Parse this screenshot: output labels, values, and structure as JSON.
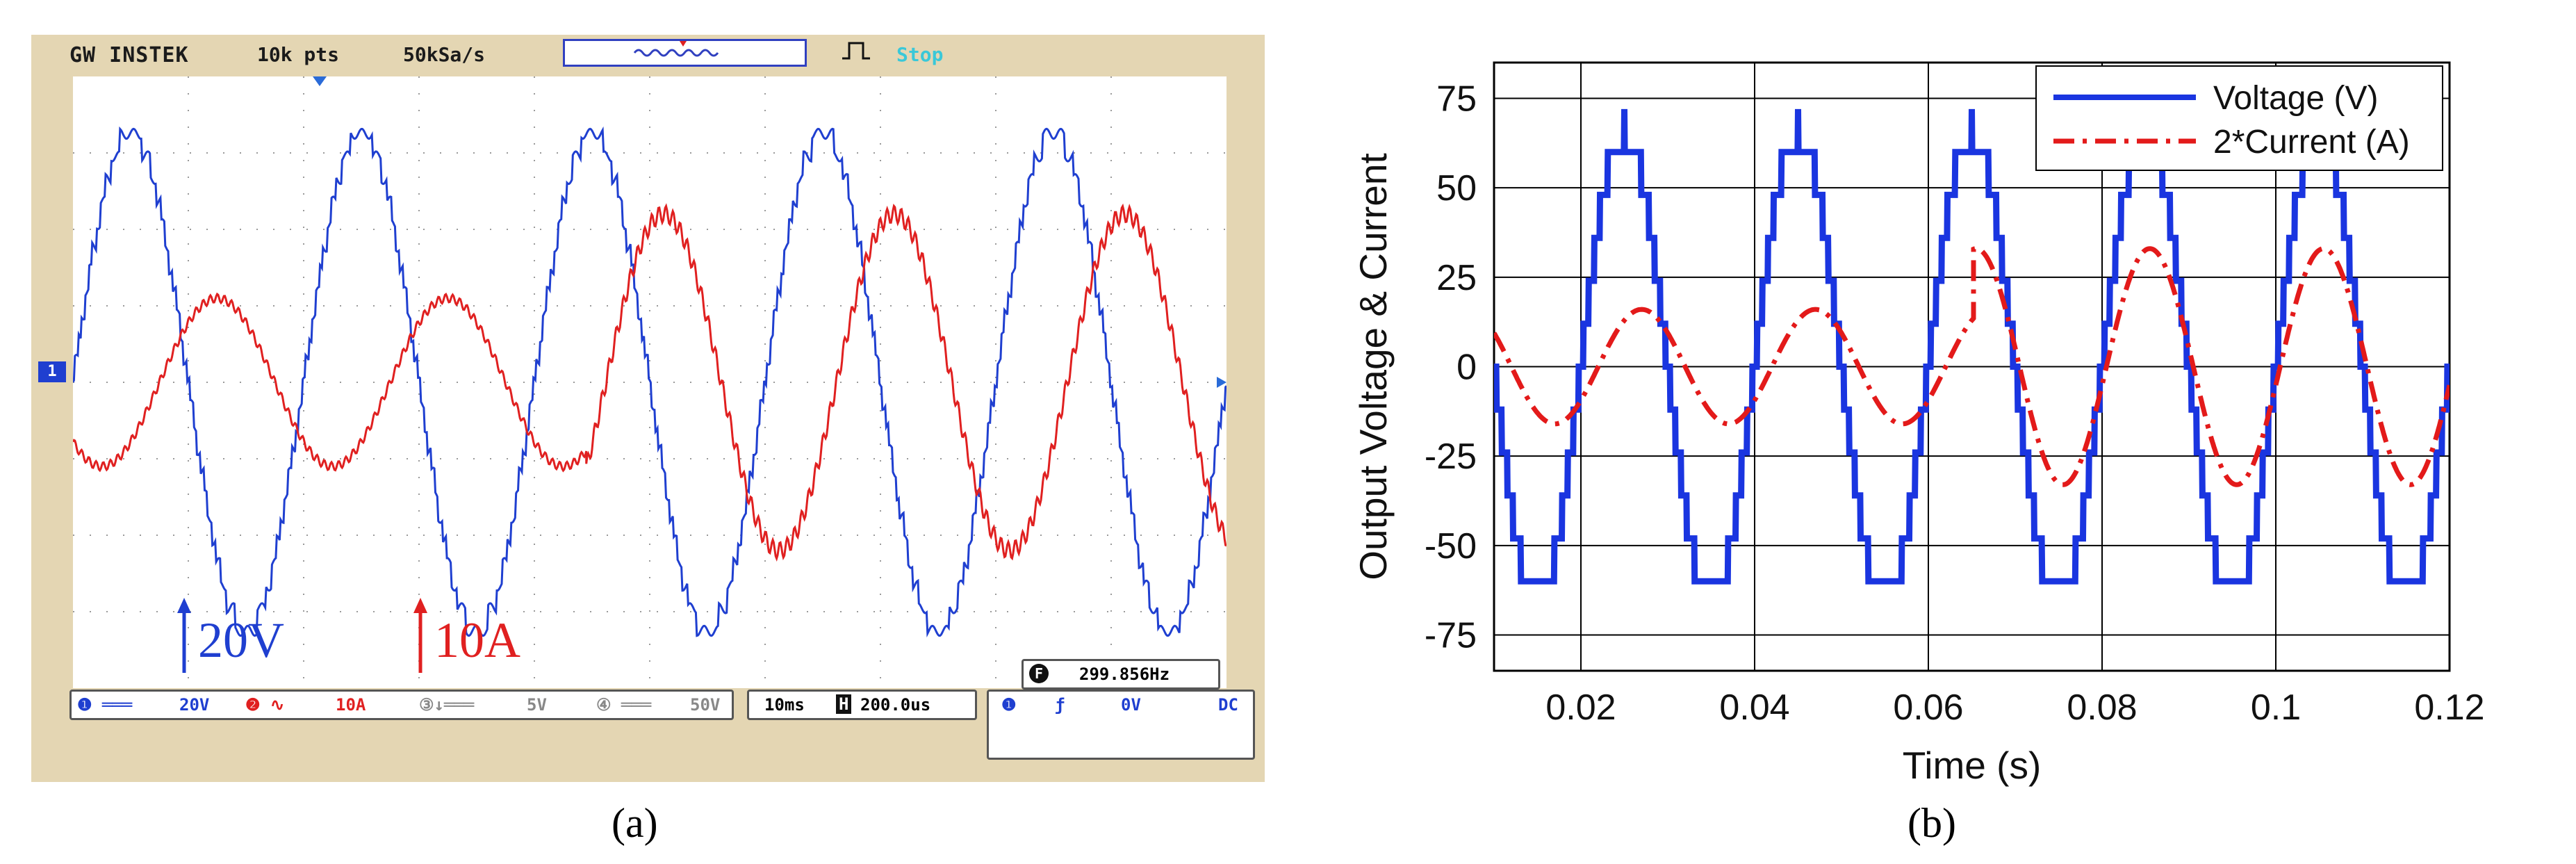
{
  "scope": {
    "brand": "GW INSTEK",
    "record_length": "10k pts",
    "sample_rate": "50kSa/s",
    "run_state": "Stop",
    "channel1_marker": "1",
    "v_scale_label": "20V",
    "i_scale_label": "10A",
    "frequency": "299.856Hz",
    "ch1_scale": "20V",
    "ch2_scale": "10A",
    "ch3_scale": "5V",
    "ch4_scale": "50V",
    "timebase": "10ms",
    "horizontal_pos": "200.0us",
    "trigger_level": "0V",
    "coupling": "DC",
    "colors": {
      "voltage": "#1f3fd0",
      "current": "#e02020",
      "frame": "#e4d6b3"
    }
  },
  "captions": {
    "a": "(a)",
    "b": "(b)"
  },
  "chart_data": [
    {
      "type": "line",
      "panel": "a",
      "x_range": [
        0,
        0.1
      ],
      "y_range_divs": [
        -4,
        4
      ],
      "series": [
        {
          "name": "Voltage",
          "color": "#1f3fd0",
          "amplitude_div": 3.25,
          "frequency_hz": 50,
          "phase_offset_s": 0.0
        },
        {
          "name": "Current",
          "color": "#e02020",
          "segments": [
            {
              "t_start": 0.0,
              "t_end": 0.0445,
              "amplitude_div": 1.1,
              "phase_lag_s": 0.0025
            },
            {
              "t_start": 0.0445,
              "t_end": 0.1,
              "amplitude_div": 2.2,
              "phase_lag_s": 0.0012
            }
          ]
        }
      ],
      "grid": true
    },
    {
      "type": "line",
      "panel": "b",
      "xlabel": "Time (s)",
      "ylabel": "Output Voltage & Current",
      "xlim": [
        0.01,
        0.12
      ],
      "ylim": [
        -85,
        85
      ],
      "xticks": [
        0.02,
        0.04,
        0.06,
        0.08,
        0.1,
        0.12
      ],
      "xtick_labels": [
        "0.02",
        "0.04",
        "0.06",
        "0.08",
        "0.1",
        "0.12"
      ],
      "yticks": [
        -75,
        -50,
        -25,
        0,
        25,
        50,
        75
      ],
      "ytick_labels": [
        "-75",
        "-50",
        "-25",
        "0",
        "25",
        "50",
        "75"
      ],
      "grid": true,
      "legend": "top-right",
      "series": [
        {
          "name": "Voltage (V)",
          "color": "#1a35e0",
          "style": "solid",
          "peak": 66,
          "frequency_hz": 50,
          "staircase_levels": 11,
          "zero_crossing_s": 0.02
        },
        {
          "name": "2*Current (A)",
          "color": "#e31a1a",
          "style": "dashdot",
          "segments": [
            {
              "t_start": 0.01,
              "t_end": 0.0652,
              "peak": 16,
              "peak_time_s": 0.027
            },
            {
              "t_start": 0.0652,
              "t_end": 0.12,
              "peak": 33,
              "peak_time_s": 0.0855
            }
          ]
        }
      ]
    }
  ]
}
